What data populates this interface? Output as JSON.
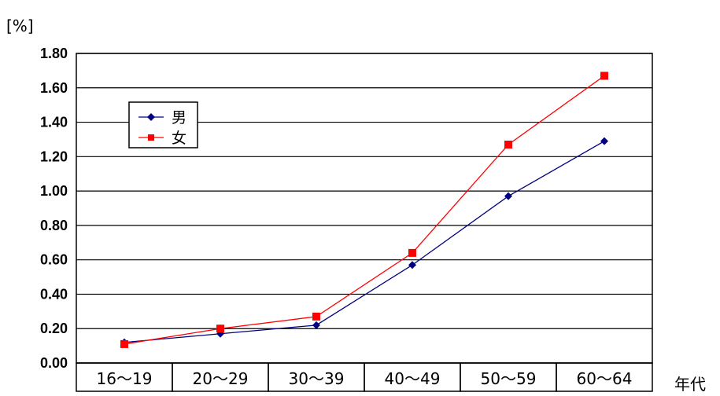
{
  "chart_data": {
    "type": "line",
    "unit_label": "[%]",
    "xlabel": "年代",
    "categories": [
      "16～19",
      "20～29",
      "30～39",
      "40～49",
      "50～59",
      "60～64"
    ],
    "ylim": [
      0,
      1.8
    ],
    "yticks": [
      "0.00",
      "0.20",
      "0.40",
      "0.60",
      "0.80",
      "1.00",
      "1.20",
      "1.40",
      "1.60",
      "1.80"
    ],
    "grid": true,
    "legend_position": "upper-left",
    "series": [
      {
        "name": "男",
        "color": "#000080",
        "marker": "diamond",
        "values": [
          0.12,
          0.17,
          0.22,
          0.57,
          0.97,
          1.29
        ]
      },
      {
        "name": "女",
        "color": "#ff0000",
        "marker": "square",
        "values": [
          0.11,
          0.2,
          0.27,
          0.64,
          1.27,
          1.67
        ]
      }
    ]
  }
}
